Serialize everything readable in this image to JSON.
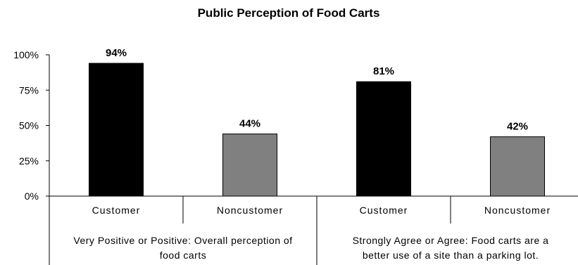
{
  "chart_data": {
    "type": "bar",
    "title": "Public Perception of Food Carts",
    "ylim": [
      0,
      100
    ],
    "yticks": [
      "0%",
      "25%",
      "50%",
      "75%",
      "100%"
    ],
    "ytick_values": [
      0,
      25,
      50,
      75,
      100
    ],
    "groups": [
      {
        "label": "Very Positive or Positive: Overall perception of food carts",
        "label_lines": [
          "Very Positive or Positive: Overall perception of",
          "food carts"
        ]
      },
      {
        "label": "Strongly Agree or Agree: Food carts are a better use of a site than a parking lot.",
        "label_lines": [
          "Strongly Agree or Agree: Food carts are a",
          "better use of a site than a parking lot."
        ]
      }
    ],
    "bars": [
      {
        "group": 0,
        "category": "Customer",
        "value": 94,
        "label": "94%",
        "color": "#000000"
      },
      {
        "group": 0,
        "category": "Noncustomer",
        "value": 44,
        "label": "44%",
        "color": "#808080"
      },
      {
        "group": 1,
        "category": "Customer",
        "value": 81,
        "label": "81%",
        "color": "#000000"
      },
      {
        "group": 1,
        "category": "Noncustomer",
        "value": 42,
        "label": "42%",
        "color": "#808080"
      }
    ],
    "grid": false,
    "legend": "none"
  }
}
